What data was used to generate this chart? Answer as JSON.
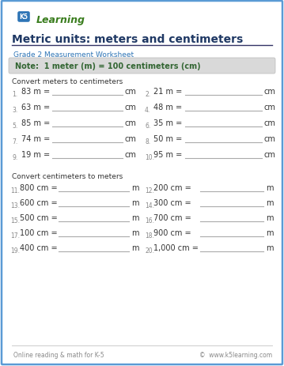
{
  "title": "Metric units: meters and centimeters",
  "subtitle": "Grade 2 Measurement Worksheet",
  "note": "Note:  1 meter (m) = 100 centimeters (cm)",
  "section1_label": "Convert meters to centimeters",
  "section2_label": "Convert centimeters to meters",
  "col1_problems": [
    {
      "num": "1.",
      "text": "83 m =",
      "unit": "cm"
    },
    {
      "num": "3.",
      "text": "63 m =",
      "unit": "cm"
    },
    {
      "num": "5.",
      "text": "85 m =",
      "unit": "cm"
    },
    {
      "num": "7.",
      "text": "74 m =",
      "unit": "cm"
    },
    {
      "num": "9.",
      "text": "19 m =",
      "unit": "cm"
    }
  ],
  "col2_problems": [
    {
      "num": "2.",
      "text": "21 m =",
      "unit": "cm"
    },
    {
      "num": "4.",
      "text": "48 m =",
      "unit": "cm"
    },
    {
      "num": "6.",
      "text": "35 m =",
      "unit": "cm"
    },
    {
      "num": "8.",
      "text": "50 m =",
      "unit": "cm"
    },
    {
      "num": "10.",
      "text": "95 m =",
      "unit": "cm"
    }
  ],
  "col3_problems": [
    {
      "num": "11.",
      "text": "800 cm =",
      "unit": "m"
    },
    {
      "num": "13.",
      "text": "600 cm =",
      "unit": "m"
    },
    {
      "num": "15.",
      "text": "500 cm =",
      "unit": "m"
    },
    {
      "num": "17.",
      "text": "100 cm =",
      "unit": "m"
    },
    {
      "num": "19.",
      "text": "400 cm =",
      "unit": "m"
    }
  ],
  "col4_problems": [
    {
      "num": "12.",
      "text": "200 cm =",
      "unit": "m"
    },
    {
      "num": "14.",
      "text": "300 cm =",
      "unit": "m"
    },
    {
      "num": "16.",
      "text": "700 cm =",
      "unit": "m"
    },
    {
      "num": "18.",
      "text": "900 cm =",
      "unit": "m"
    },
    {
      "num": "20.",
      "text": "1,000 cm =",
      "unit": "m"
    }
  ],
  "footer_left": "Online reading & math for K-5",
  "footer_right": "©  www.k5learning.com",
  "border_color": "#5b9bd5",
  "title_color": "#1f3864",
  "subtitle_color": "#2e75b6",
  "note_color": "#336633",
  "note_bg": "#d9d9d9",
  "section_label_color": "#333333",
  "problem_color": "#333333",
  "number_color": "#888888",
  "line_color": "#aaaaaa",
  "footer_color": "#888888",
  "bg_color": "#ffffff",
  "logo_green": "#3a7d1e",
  "logo_blue": "#2e75b6"
}
